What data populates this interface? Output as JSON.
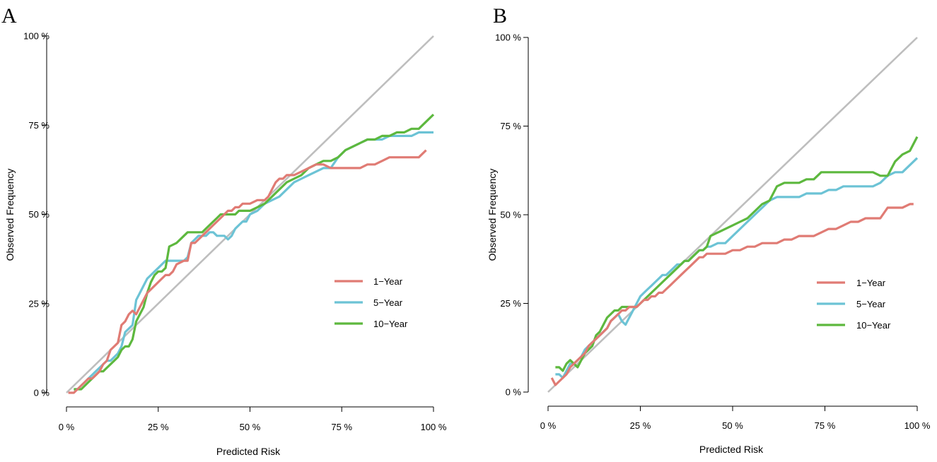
{
  "chart_data": [
    {
      "panel": "A",
      "type": "line",
      "xlabel": "Predicted Risk",
      "ylabel": "Observed Frequency",
      "xlim": [
        0,
        100
      ],
      "ylim": [
        0,
        100
      ],
      "xticks": [
        "0 %",
        "25 %",
        "50 %",
        "75 %",
        "100 %"
      ],
      "yticks": [
        "0 %",
        "25 %",
        "50 %",
        "75 %",
        "100 %"
      ],
      "legend_position": "right",
      "reference": {
        "name": "ideal",
        "color": "#BEBEBE",
        "x": [
          0,
          100
        ],
        "y": [
          0,
          100
        ]
      },
      "series": [
        {
          "name": "1-Year",
          "color": "#E07B74",
          "x": [
            0.5,
            2,
            3,
            4,
            5,
            6,
            7,
            8,
            9,
            10,
            11,
            12,
            13,
            14,
            15,
            16,
            17,
            18,
            19,
            20,
            21,
            22,
            23,
            24,
            25,
            26,
            27,
            28,
            29,
            30,
            32,
            33,
            34,
            35,
            36,
            37,
            38,
            39,
            40,
            41,
            42,
            43,
            44,
            45,
            46,
            47,
            48,
            49,
            50,
            52,
            53,
            54,
            55,
            56,
            57,
            58,
            59,
            60,
            62,
            64,
            66,
            68,
            70,
            72,
            74,
            75,
            76,
            78,
            80,
            82,
            84,
            86,
            88,
            90,
            92,
            94,
            96,
            98
          ],
          "y": [
            0,
            0,
            1,
            2,
            3,
            4,
            4,
            5,
            6,
            8,
            9,
            12,
            13,
            14,
            19,
            20,
            22,
            23,
            22,
            24,
            26,
            28,
            29,
            30,
            31,
            32,
            33,
            33,
            34,
            36,
            37,
            37,
            42,
            42,
            43,
            44,
            45,
            46,
            47,
            48,
            49,
            50,
            51,
            51,
            52,
            52,
            53,
            53,
            53,
            54,
            54,
            54,
            55,
            57,
            59,
            60,
            60,
            61,
            61,
            62,
            63,
            64,
            64,
            63,
            63,
            63,
            63,
            63,
            63,
            64,
            64,
            65,
            66,
            66,
            66,
            66,
            66,
            68
          ]
        },
        {
          "name": "5-Year",
          "color": "#6CC3D5",
          "x": [
            2,
            3,
            4,
            5,
            6,
            7,
            8,
            9,
            10,
            11,
            12,
            13,
            14,
            15,
            16,
            17,
            18,
            19,
            20,
            21,
            22,
            23,
            24,
            25,
            26,
            27,
            28,
            30,
            32,
            33,
            34,
            35,
            36,
            37,
            38,
            39,
            40,
            41,
            42,
            43,
            44,
            45,
            46,
            47,
            48,
            49,
            50,
            52,
            54,
            56,
            58,
            60,
            62,
            64,
            66,
            68,
            70,
            72,
            74,
            75,
            76,
            78,
            80,
            82,
            84,
            86,
            88,
            90,
            92,
            94,
            96,
            98,
            100
          ],
          "y": [
            1,
            1,
            2,
            3,
            4,
            5,
            6,
            7,
            8,
            9,
            9,
            10,
            11,
            13,
            17,
            18,
            19,
            26,
            28,
            30,
            32,
            33,
            34,
            35,
            36,
            37,
            37,
            37,
            37,
            38,
            42,
            43,
            44,
            44,
            44,
            45,
            45,
            44,
            44,
            44,
            43,
            44,
            46,
            47,
            48,
            48,
            50,
            51,
            53,
            54,
            55,
            57,
            59,
            60,
            61,
            62,
            63,
            63,
            66,
            67,
            68,
            69,
            70,
            71,
            71,
            71,
            72,
            72,
            72,
            72,
            73,
            73,
            73
          ]
        },
        {
          "name": "10-Year",
          "color": "#5DB83E",
          "x": [
            2,
            3,
            4,
            5,
            6,
            7,
            8,
            9,
            10,
            11,
            12,
            13,
            14,
            15,
            16,
            17,
            18,
            19,
            20,
            21,
            22,
            23,
            24,
            25,
            26,
            27,
            28,
            30,
            32,
            33,
            34,
            35,
            36,
            37,
            38,
            39,
            40,
            41,
            42,
            43,
            44,
            45,
            46,
            47,
            48,
            49,
            50,
            52,
            54,
            56,
            58,
            60,
            62,
            64,
            66,
            68,
            70,
            72,
            74,
            75,
            76,
            78,
            80,
            82,
            84,
            86,
            88,
            90,
            92,
            94,
            96,
            98,
            99,
            100
          ],
          "y": [
            1,
            1,
            1,
            2,
            3,
            4,
            5,
            6,
            6,
            7,
            8,
            9,
            10,
            12,
            13,
            13,
            15,
            20,
            22,
            24,
            28,
            31,
            33,
            34,
            34,
            35,
            41,
            42,
            44,
            45,
            45,
            45,
            45,
            45,
            46,
            47,
            48,
            49,
            50,
            50,
            50,
            50,
            50,
            51,
            51,
            51,
            51,
            52,
            53,
            55,
            57,
            59,
            60,
            61,
            63,
            64,
            65,
            65,
            66,
            67,
            68,
            69,
            70,
            71,
            71,
            72,
            72,
            73,
            73,
            74,
            74,
            76,
            77,
            78
          ]
        }
      ]
    },
    {
      "panel": "B",
      "type": "line",
      "xlabel": "Predicted Risk",
      "ylabel": "Observed Frequency",
      "xlim": [
        0,
        100
      ],
      "ylim": [
        0,
        100
      ],
      "xticks": [
        "0 %",
        "25 %",
        "50 %",
        "75 %",
        "100 %"
      ],
      "yticks": [
        "0 %",
        "25 %",
        "50 %",
        "75 %",
        "100 %"
      ],
      "legend_position": "right",
      "reference": {
        "name": "ideal",
        "color": "#BEBEBE",
        "x": [
          0,
          100
        ],
        "y": [
          0,
          100
        ]
      },
      "series": [
        {
          "name": "1-Year",
          "color": "#E07B74",
          "x": [
            1,
            2,
            3,
            4,
            5,
            6,
            7,
            8,
            9,
            10,
            11,
            12,
            13,
            14,
            15,
            16,
            17,
            18,
            19,
            20,
            21,
            22,
            23,
            24,
            25,
            26,
            27,
            28,
            29,
            30,
            31,
            32,
            33,
            34,
            35,
            36,
            37,
            38,
            39,
            40,
            41,
            42,
            43,
            44,
            46,
            48,
            50,
            52,
            54,
            56,
            58,
            60,
            62,
            64,
            66,
            68,
            70,
            72,
            74,
            76,
            78,
            80,
            82,
            84,
            86,
            88,
            90,
            92,
            94,
            96,
            98,
            99
          ],
          "y": [
            4,
            2,
            3,
            4,
            5,
            7,
            8,
            9,
            10,
            11,
            13,
            14,
            15,
            16,
            17,
            18,
            20,
            21,
            22,
            23,
            23,
            24,
            24,
            24,
            25,
            26,
            26,
            27,
            27,
            28,
            28,
            29,
            30,
            31,
            32,
            33,
            34,
            35,
            36,
            37,
            38,
            38,
            39,
            39,
            39,
            39,
            40,
            40,
            41,
            41,
            42,
            42,
            42,
            43,
            43,
            44,
            44,
            44,
            45,
            46,
            46,
            47,
            48,
            48,
            49,
            49,
            49,
            52,
            52,
            52,
            53,
            53
          ]
        },
        {
          "name": "5-Year",
          "color": "#6CC3D5",
          "x": [
            2,
            3,
            4,
            5,
            6,
            7,
            8,
            9,
            10,
            11,
            12,
            13,
            14,
            15,
            16,
            17,
            18,
            19,
            20,
            21,
            22,
            23,
            24,
            25,
            26,
            27,
            28,
            29,
            30,
            31,
            32,
            33,
            34,
            35,
            36,
            37,
            38,
            39,
            40,
            41,
            42,
            43,
            44,
            46,
            48,
            50,
            52,
            54,
            56,
            58,
            60,
            62,
            64,
            66,
            68,
            70,
            72,
            74,
            76,
            78,
            80,
            82,
            84,
            86,
            88,
            90,
            92,
            94,
            96,
            98,
            100
          ],
          "y": [
            5,
            5,
            4,
            6,
            8,
            8,
            9,
            10,
            12,
            13,
            14,
            15,
            16,
            17,
            18,
            20,
            21,
            22,
            20,
            19,
            21,
            23,
            25,
            27,
            28,
            29,
            30,
            31,
            32,
            33,
            33,
            34,
            35,
            36,
            36,
            37,
            37,
            38,
            39,
            40,
            40,
            41,
            41,
            42,
            42,
            44,
            46,
            48,
            50,
            52,
            54,
            55,
            55,
            55,
            55,
            56,
            56,
            56,
            57,
            57,
            58,
            58,
            58,
            58,
            58,
            59,
            61,
            62,
            62,
            64,
            66
          ]
        },
        {
          "name": "10-Year",
          "color": "#5DB83E",
          "x": [
            2,
            3,
            4,
            5,
            6,
            7,
            8,
            9,
            10,
            11,
            12,
            13,
            14,
            15,
            16,
            17,
            18,
            19,
            20,
            21,
            22,
            23,
            24,
            25,
            26,
            27,
            28,
            29,
            30,
            31,
            32,
            33,
            34,
            35,
            36,
            37,
            38,
            39,
            40,
            41,
            42,
            43,
            44,
            46,
            48,
            50,
            52,
            54,
            56,
            58,
            60,
            62,
            64,
            66,
            68,
            70,
            72,
            74,
            76,
            78,
            80,
            82,
            84,
            86,
            88,
            90,
            92,
            94,
            96,
            98,
            100
          ],
          "y": [
            7,
            7,
            6,
            8,
            9,
            8,
            7,
            9,
            11,
            12,
            13,
            16,
            17,
            19,
            21,
            22,
            23,
            23,
            24,
            24,
            24,
            24,
            24,
            25,
            26,
            27,
            28,
            29,
            30,
            31,
            32,
            33,
            34,
            35,
            36,
            37,
            37,
            38,
            39,
            40,
            40,
            41,
            44,
            45,
            46,
            47,
            48,
            49,
            51,
            53,
            54,
            58,
            59,
            59,
            59,
            60,
            60,
            62,
            62,
            62,
            62,
            62,
            62,
            62,
            62,
            61,
            61,
            65,
            67,
            68,
            72
          ]
        }
      ]
    }
  ]
}
